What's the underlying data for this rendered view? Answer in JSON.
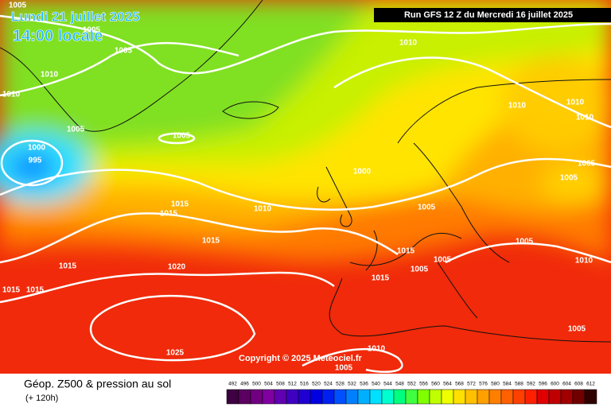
{
  "header": {
    "date": "Lundi 21 juillet 2025",
    "time": "14:00 locale",
    "run": "Run GFS 12 Z du Mercredi 16 juillet 2025"
  },
  "map": {
    "isobar_labels": [
      "1005",
      "1005",
      "1005",
      "1010",
      "1010",
      "1005",
      "1000",
      "995",
      "1005",
      "1010",
      "1010",
      "1010",
      "1010",
      "1000",
      "1005",
      "1005",
      "1015",
      "1015",
      "1010",
      "1005",
      "1015",
      "1005",
      "1015",
      "1005",
      "1015",
      "1020",
      "1005",
      "1010",
      "1015",
      "1015",
      "1015",
      "1005",
      "1025",
      "1010",
      "1005"
    ],
    "copyright": "Copyright © 2025 Meteociel.fr"
  },
  "footer": {
    "title": "Géop. Z500 & pression au sol",
    "lead": "(+ 120h)",
    "scale_labels": [
      "492",
      "496",
      "500",
      "504",
      "508",
      "512",
      "516",
      "520",
      "524",
      "528",
      "532",
      "536",
      "540",
      "544",
      "548",
      "552",
      "556",
      "560",
      "564",
      "568",
      "572",
      "576",
      "580",
      "584",
      "588",
      "592",
      "596",
      "600",
      "604",
      "608",
      "612"
    ],
    "scale_colors": [
      "#3d0040",
      "#5a0060",
      "#700080",
      "#8000a0",
      "#6000b0",
      "#4000c0",
      "#2000d0",
      "#0000e0",
      "#0020f0",
      "#0050ff",
      "#0080ff",
      "#00b0ff",
      "#00e0ff",
      "#00ffd0",
      "#00ff80",
      "#40ff40",
      "#80ff00",
      "#c0ff00",
      "#f0ff00",
      "#ffe000",
      "#ffc000",
      "#ffa000",
      "#ff8000",
      "#ff6000",
      "#ff4000",
      "#ff2000",
      "#e00000",
      "#c00000",
      "#a00000",
      "#700000",
      "#300000"
    ]
  }
}
